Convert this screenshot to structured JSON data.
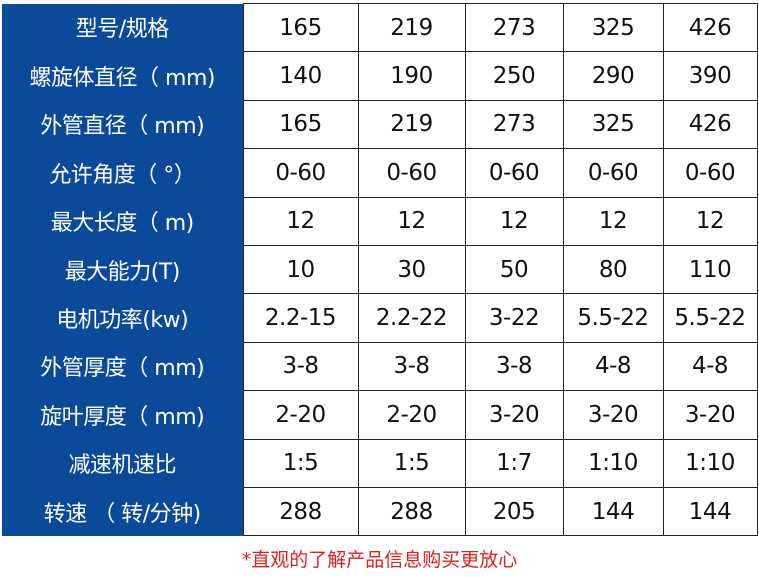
{
  "table": {
    "rows": [
      {
        "label": "型号/规格",
        "values": [
          "165",
          "219",
          "273",
          "325",
          "426"
        ]
      },
      {
        "label": "螺旋体直径（ mm)",
        "values": [
          "140",
          "190",
          "250",
          "290",
          "390"
        ]
      },
      {
        "label": "外管直径（ mm)",
        "values": [
          "165",
          "219",
          "273",
          "325",
          "426"
        ]
      },
      {
        "label": "允许角度（ °）",
        "values": [
          "0-60",
          "0-60",
          "0-60",
          "0-60",
          "0-60"
        ]
      },
      {
        "label": "最大长度（ m)",
        "values": [
          "12",
          "12",
          "12",
          "12",
          "12"
        ]
      },
      {
        "label": "最大能力(T)",
        "values": [
          "10",
          "30",
          "50",
          "80",
          "110"
        ]
      },
      {
        "label": "电机功率(kw)",
        "values": [
          "2.2-15",
          "2.2-22",
          "3-22",
          "5.5-22",
          "5.5-22"
        ]
      },
      {
        "label": "外管厚度（ mm)",
        "values": [
          "3-8",
          "3-8",
          "3-8",
          "4-8",
          "4-8"
        ]
      },
      {
        "label": "旋叶厚度（ mm)",
        "values": [
          "2-20",
          "2-20",
          "3-20",
          "3-20",
          "3-20"
        ]
      },
      {
        "label": "减速机速比",
        "values": [
          "1:5",
          "1:5",
          "1:7",
          "1:10",
          "1:10"
        ]
      },
      {
        "label": "转速 （ 转/分钟)",
        "values": [
          "288",
          "288",
          "205",
          "144",
          "144"
        ]
      }
    ]
  },
  "footer": {
    "note": "*直观的了解产品信息购买更放心"
  },
  "colors": {
    "header_bg": "#0b4a9b",
    "note": "#e0201b"
  }
}
